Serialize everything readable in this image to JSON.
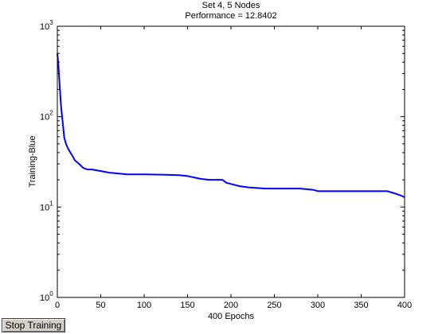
{
  "window": {
    "stop_button_label": "Stop Training"
  },
  "chart_data": {
    "type": "line",
    "title": "Set 4, 5 Nodes",
    "subtitle": "Performance = 12.8402",
    "xlabel": "400 Epochs",
    "ylabel": "Training-Blue",
    "xlim": [
      0,
      400
    ],
    "ylim": [
      1,
      1000
    ],
    "yscale": "log",
    "grid": false,
    "xticks": [
      "0",
      "50",
      "100",
      "150",
      "200",
      "250",
      "300",
      "350",
      "400"
    ],
    "yticks": [
      {
        "base": "10",
        "exp": "0"
      },
      {
        "base": "10",
        "exp": "1"
      },
      {
        "base": "10",
        "exp": "2"
      },
      {
        "base": "10",
        "exp": "3"
      }
    ],
    "series": [
      {
        "color": "#0000ff",
        "x": [
          0,
          1,
          2,
          3,
          4,
          5,
          6,
          7,
          8,
          10,
          12,
          15,
          18,
          20,
          25,
          30,
          35,
          40,
          50,
          60,
          70,
          80,
          100,
          120,
          140,
          150,
          155,
          165,
          175,
          190,
          195,
          200,
          210,
          220,
          240,
          260,
          280,
          295,
          300,
          320,
          350,
          380,
          385,
          390,
          395,
          400
        ],
        "values": [
          500,
          400,
          280,
          200,
          140,
          110,
          90,
          72,
          58,
          50,
          45,
          40,
          36,
          33,
          30,
          27,
          26,
          26,
          25,
          24,
          23.5,
          23,
          23,
          22.8,
          22.5,
          22,
          21.5,
          20.5,
          20,
          20,
          18.5,
          18,
          17,
          16.5,
          16,
          16,
          16,
          15.5,
          15,
          15,
          15,
          15,
          14.5,
          14,
          13.5,
          12.8402
        ]
      }
    ]
  }
}
